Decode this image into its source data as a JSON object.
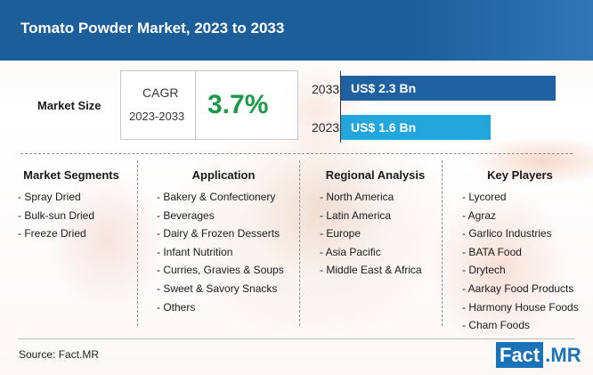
{
  "header": {
    "title": "Tomato Powder Market, 2023 to 2033"
  },
  "market_size": {
    "label": "Market Size",
    "cagr_title": "CAGR",
    "cagr_years": "2023-2033",
    "cagr_value": "3.7%",
    "bars": [
      {
        "year": "2033",
        "value_text": "US$ 2.3 Bn",
        "value": 2.3,
        "color": "#1f60a1"
      },
      {
        "year": "2023",
        "value_text": "US$ 1.6 Bn",
        "value": 1.6,
        "color": "#23a6db"
      }
    ]
  },
  "columns": [
    {
      "title": "Market Segments",
      "items": [
        "- Spray Dried",
        "- Bulk-sun Dried",
        "- Freeze Dried"
      ]
    },
    {
      "title": "Application",
      "items": [
        "- Bakery & Confectionery",
        "- Beverages",
        "- Dairy & Frozen Desserts",
        "- Infant Nutrition",
        "- Curries, Gravies & Soups",
        "- Sweet & Savory Snacks",
        "- Others"
      ]
    },
    {
      "title": "Regional Analysis",
      "items": [
        "- North America",
        "- Latin America",
        "- Europe",
        "- Asia Pacific",
        "- Middle East & Africa"
      ]
    },
    {
      "title": "Key Players",
      "items": [
        "- Lycored",
        "- Agraz",
        "- Garlico Industries",
        "- BATA Food",
        "- Drytech",
        "- Aarkay Food Products",
        "- Harmony House Foods",
        "- Cham Foods"
      ]
    }
  ],
  "footer": {
    "source": "Source: Fact.MR",
    "logo_part1": "Fact",
    "logo_part2": ".MR"
  }
}
